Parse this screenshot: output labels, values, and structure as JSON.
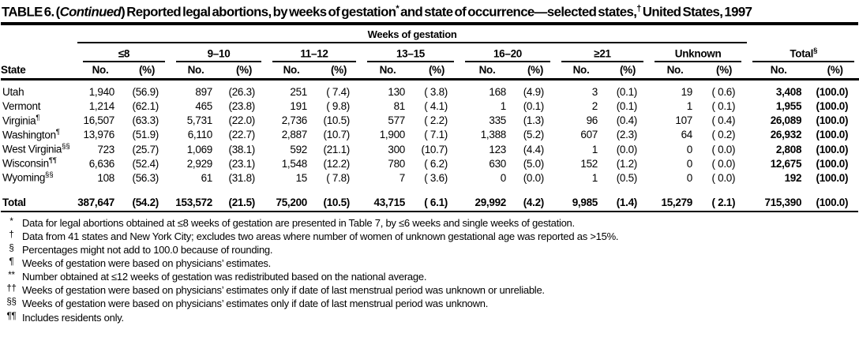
{
  "title": {
    "prefix": "TABLE 6. (",
    "continued": "Continued",
    "after_continued": ") Reported legal abortions, by weeks of gestation",
    "sup1": "*",
    "mid": " and state of occurrence—selected states,",
    "sup2": "†",
    "suffix": " United States, 1997"
  },
  "table": {
    "spanner": "Weeks of gestation",
    "state_header": "State",
    "no_header": "No.",
    "pct_header": "(%)",
    "groups": [
      {
        "label": "≤8",
        "sup": ""
      },
      {
        "label": "9–10",
        "sup": ""
      },
      {
        "label": "11–12",
        "sup": ""
      },
      {
        "label": "13–15",
        "sup": ""
      },
      {
        "label": "16–20",
        "sup": ""
      },
      {
        "label": "≥21",
        "sup": ""
      },
      {
        "label": "Unknown",
        "sup": ""
      },
      {
        "label": "Total",
        "sup": "§"
      }
    ],
    "rows": [
      {
        "state": "Utah",
        "sup": "",
        "total": false,
        "values": [
          "1,940",
          "(56.9)",
          "897",
          "(26.3)",
          "251",
          "( 7.4)",
          "130",
          "( 3.8)",
          "168",
          "(4.9)",
          "3",
          "(0.1)",
          "19",
          "( 0.6)",
          "3,408",
          "(100.0)"
        ]
      },
      {
        "state": "Vermont",
        "sup": "",
        "total": false,
        "values": [
          "1,214",
          "(62.1)",
          "465",
          "(23.8)",
          "191",
          "( 9.8)",
          "81",
          "( 4.1)",
          "1",
          "(0.1)",
          "2",
          "(0.1)",
          "1",
          "( 0.1)",
          "1,955",
          "(100.0)"
        ]
      },
      {
        "state": "Virginia",
        "sup": "¶",
        "total": false,
        "values": [
          "16,507",
          "(63.3)",
          "5,731",
          "(22.0)",
          "2,736",
          "(10.5)",
          "577",
          "( 2.2)",
          "335",
          "(1.3)",
          "96",
          "(0.4)",
          "107",
          "( 0.4)",
          "26,089",
          "(100.0)"
        ]
      },
      {
        "state": "Washington",
        "sup": "¶",
        "total": false,
        "values": [
          "13,976",
          "(51.9)",
          "6,110",
          "(22.7)",
          "2,887",
          "(10.7)",
          "1,900",
          "( 7.1)",
          "1,388",
          "(5.2)",
          "607",
          "(2.3)",
          "64",
          "( 0.2)",
          "26,932",
          "(100.0)"
        ]
      },
      {
        "state": "West Virginia",
        "sup": "§§",
        "total": false,
        "values": [
          "723",
          "(25.7)",
          "1,069",
          "(38.1)",
          "592",
          "(21.1)",
          "300",
          "(10.7)",
          "123",
          "(4.4)",
          "1",
          "(0.0)",
          "0",
          "( 0.0)",
          "2,808",
          "(100.0)"
        ]
      },
      {
        "state": "Wisconsin",
        "sup": "¶¶",
        "total": false,
        "values": [
          "6,636",
          "(52.4)",
          "2,929",
          "(23.1)",
          "1,548",
          "(12.2)",
          "780",
          "( 6.2)",
          "630",
          "(5.0)",
          "152",
          "(1.2)",
          "0",
          "( 0.0)",
          "12,675",
          "(100.0)"
        ]
      },
      {
        "state": "Wyoming",
        "sup": "§§",
        "total": false,
        "values": [
          "108",
          "(56.3)",
          "61",
          "(31.8)",
          "15",
          "( 7.8)",
          "7",
          "( 3.6)",
          "0",
          "(0.0)",
          "1",
          "(0.5)",
          "0",
          "( 0.0)",
          "192",
          "(100.0)"
        ]
      },
      {
        "state": "Total",
        "sup": "",
        "total": true,
        "values": [
          "387,647",
          "(54.2)",
          "153,572",
          "(21.5)",
          "75,200",
          "(10.5)",
          "43,715",
          "( 6.1)",
          "29,992",
          "(4.2)",
          "9,985",
          "(1.4)",
          "15,279",
          "( 2.1)",
          "715,390",
          "(100.0)"
        ]
      }
    ]
  },
  "footnotes": [
    {
      "sym": "*",
      "text": "Data for legal abortions obtained at ≤8 weeks of gestation are presented in Table 7, by ≤6 weeks and single weeks of gestation."
    },
    {
      "sym": "†",
      "text": "Data from 41 states and New York City; excludes two areas where number of women of unknown gestational age was reported as >15%."
    },
    {
      "sym": "§",
      "text": "Percentages might not add to 100.0 because of rounding."
    },
    {
      "sym": "¶",
      "text": "Weeks of gestation were based on physicians’ estimates."
    },
    {
      "sym": "**",
      "text": "Number obtained at ≤12 weeks of gestation was redistributed based on the national average."
    },
    {
      "sym": "††",
      "text": "Weeks of gestation were based on physicians’ estimates only if date of last menstrual period was unknown or unreliable."
    },
    {
      "sym": "§§",
      "text": "Weeks of gestation were based on physicians’ estimates only if date of last menstrual period was unknown."
    },
    {
      "sym": "¶¶",
      "text": "Includes residents only."
    }
  ]
}
